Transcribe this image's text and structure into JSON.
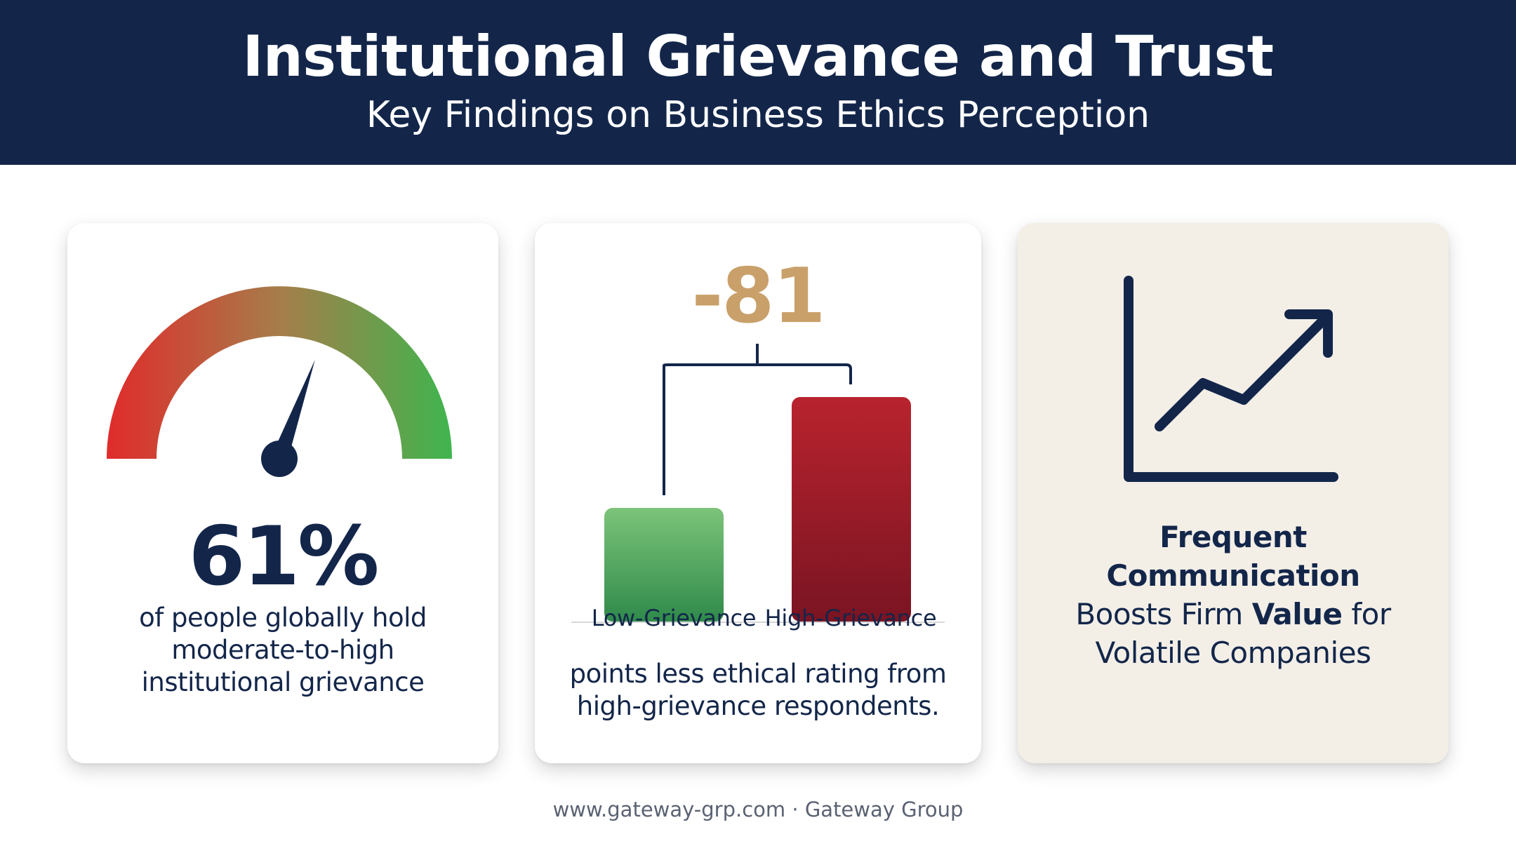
{
  "header": {
    "title": "Institutional Grievance and Trust",
    "subtitle": "Key Findings on Business Ethics Perception"
  },
  "card_grievance": {
    "percent": "61%",
    "gauge_level_fraction": 0.61,
    "description_lines": [
      "of people globally hold",
      "moderate-to-high",
      "institutional grievance"
    ],
    "gauge_colors": {
      "low": "#e02b2b",
      "high": "#3fb54e"
    }
  },
  "card_ethics": {
    "difference": "-81",
    "categories": [
      "Low-Grievance",
      "High-Grievance"
    ],
    "description_lines": [
      "points less ethical rating from",
      "high-grievance respondents."
    ],
    "bar_colors": {
      "low_grievance": "#4caf5c",
      "high_grievance": "#a8202a"
    },
    "accent": "#c9a06a"
  },
  "card_communication": {
    "icon": "trend-up-chart-icon",
    "line1": "Frequent",
    "line2": "Communication",
    "line3_prefix": "Boosts Firm ",
    "line3_bold": "Value",
    "line3_suffix": " for",
    "line4": "Volatile Companies"
  },
  "footer": {
    "text": "www.gateway-grp.com · Gateway Group"
  }
}
